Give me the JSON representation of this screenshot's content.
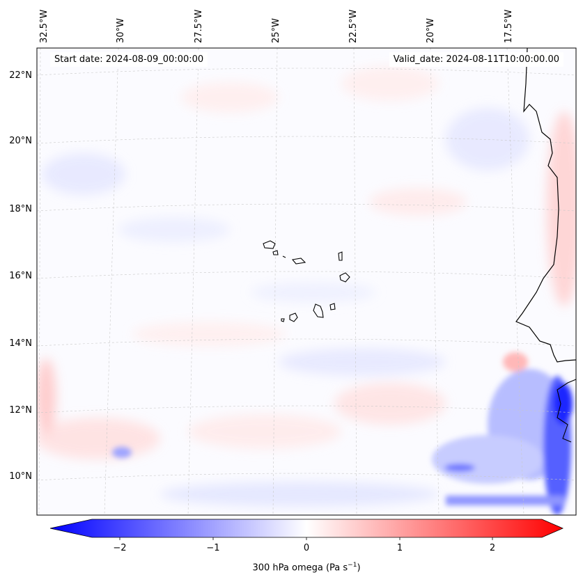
{
  "map": {
    "start_date_prefix": "Start date: ",
    "start_date_value": "2024-08-09_00:00:00",
    "valid_date_prefix": "Valid_date: ",
    "valid_date_value": "2024-08-11T10:00:00.00",
    "longitude_labels": [
      "32.5°W",
      "30°W",
      "27.5°W",
      "25°W",
      "22.5°W",
      "20°W",
      "17.5°W"
    ],
    "latitude_labels": [
      "22°N",
      "20°N",
      "18°N",
      "16°N",
      "14°N",
      "12°N",
      "10°N"
    ],
    "extent": {
      "lon_min": -32.6,
      "lon_max": -15.9,
      "lat_min": 8.9,
      "lat_max": 22.8
    },
    "field": "300 hPa omega",
    "features": [
      "Cape Verde islands",
      "West African coastline"
    ]
  },
  "colorbar": {
    "label_text": "300 hPa omega (Pa s",
    "label_exponent": "−1",
    "label_suffix": ")",
    "tick_labels": [
      "−2",
      "−1",
      "0",
      "1",
      "2"
    ],
    "tick_values": [
      -2,
      -1,
      0,
      1,
      2
    ],
    "range": [
      -2.5,
      2.5
    ],
    "extend": "both",
    "cmap": "bwr",
    "colors": {
      "negative": "#0000ff",
      "zero": "#ffffff",
      "positive": "#ff0000"
    }
  }
}
